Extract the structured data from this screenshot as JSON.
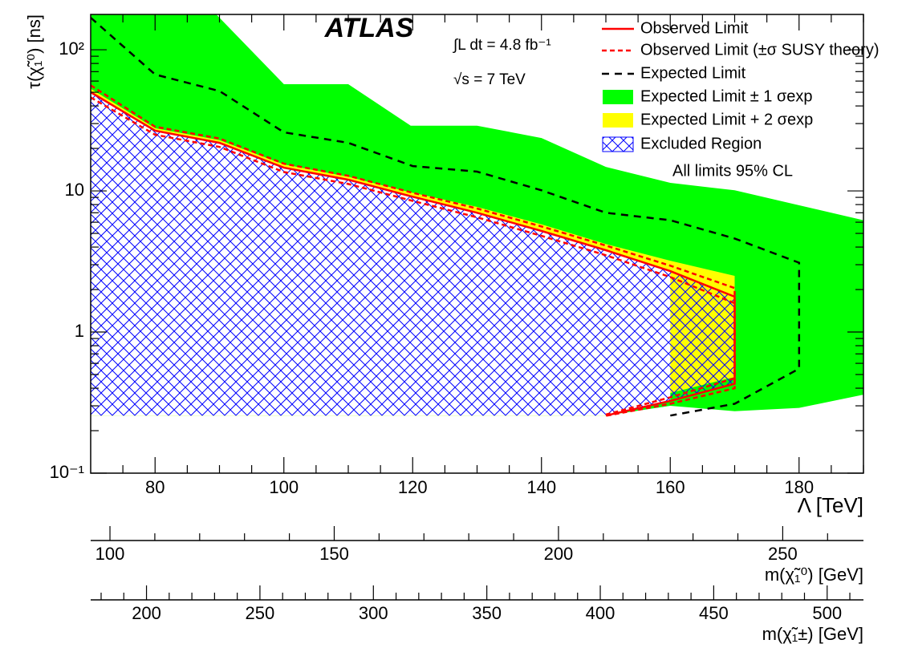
{
  "chart_data": {
    "type": "exclusion",
    "xlabel": "Λ [TeV]",
    "ylabel": "τ(χ̃₁⁰) [ns]",
    "xlim": [
      70,
      190
    ],
    "ylim": [
      0.1,
      178
    ],
    "log_y": true,
    "xticks": [
      80,
      100,
      120,
      140,
      160,
      180
    ],
    "xminorticks": [
      75,
      85,
      90,
      95,
      105,
      110,
      115,
      125,
      130,
      135,
      145,
      150,
      155,
      165,
      170,
      175,
      185,
      190
    ],
    "yticks": [
      {
        "value": 0.1,
        "label": "10⁻¹"
      },
      1,
      10,
      {
        "value": 100,
        "label": "10²"
      }
    ],
    "yminorticks": [
      0.2,
      0.3,
      0.4,
      0.5,
      0.6,
      0.7,
      0.8,
      0.9,
      2,
      3,
      4,
      5,
      6,
      7,
      8,
      9,
      20,
      30,
      40,
      50,
      60,
      70,
      80,
      90
    ],
    "annotations": {
      "experiment": "ATLAS",
      "luminosity": "∫L dt = 4.8 fb⁻¹",
      "energy": "√s = 7 TeV",
      "cl": "All limits 95% CL"
    },
    "series": [
      {
        "name": "Expected Limit ± 1 σexp",
        "kind": "band",
        "color": "#00ff00",
        "x": [
          70,
          89.5,
          100,
          110,
          119.7,
          130,
          140,
          150,
          160,
          170,
          190,
          190,
          180,
          170,
          160,
          150,
          70
        ],
        "values": [
          178,
          178,
          57,
          57,
          29,
          29,
          23.7,
          14.8,
          11.4,
          10.1,
          6.2,
          0.36,
          0.29,
          0.275,
          0.3,
          0.256,
          0.256
        ]
      },
      {
        "name": "Expected Limit + 2 σexp",
        "kind": "band",
        "color": "#ffff00",
        "x": [
          70,
          80,
          90,
          100,
          110,
          120,
          130,
          140,
          150,
          160,
          170,
          170,
          160,
          150,
          70
        ],
        "values": [
          53,
          27.8,
          22.9,
          15.4,
          12.6,
          9.7,
          7.7,
          5.8,
          4.2,
          3.2,
          2.5,
          0.48,
          0.37,
          0.256,
          0.256
        ]
      },
      {
        "kind": "blank",
        "color": "#ffffff",
        "x": [
          70,
          80,
          90,
          100,
          110,
          120,
          130,
          140,
          150,
          160,
          160,
          150,
          70
        ],
        "values": [
          50,
          26.7,
          21.9,
          14.6,
          12,
          9.1,
          7.0,
          5.2,
          3.8,
          2.7,
          0.325,
          0.256,
          0.256
        ]
      },
      {
        "name": "Excluded Region",
        "kind": "hatch",
        "color": "#0000ff",
        "x": [
          70,
          80,
          90,
          100,
          110,
          120,
          130,
          140,
          150,
          160,
          170,
          170,
          160,
          150,
          70
        ],
        "values": [
          50,
          26.7,
          21.9,
          14.6,
          12,
          9.1,
          7.0,
          5.2,
          3.8,
          2.7,
          1.78,
          0.43,
          0.325,
          0.256,
          0.256
        ]
      },
      {
        "name": "Expected Limit",
        "kind": "line",
        "dash": true,
        "color": "#000000",
        "x": [
          70,
          80,
          90,
          100,
          110,
          120,
          130,
          140,
          150,
          160,
          170,
          180,
          180,
          170,
          160
        ],
        "values": [
          169,
          66.8,
          51,
          26,
          21.9,
          15,
          13.7,
          10.1,
          7.0,
          6.2,
          4.6,
          3.1,
          0.55,
          0.31,
          0.256
        ]
      },
      {
        "name": "Observed Limit (±σ SUSY theory)",
        "kind": "line",
        "dash": true,
        "color": "#ff0000",
        "x": [
          70,
          80,
          90,
          100,
          110,
          120,
          130,
          140,
          150,
          160,
          170,
          170,
          160,
          150
        ],
        "values": [
          56,
          28.5,
          23.5,
          15.6,
          12.8,
          9.7,
          7.5,
          5.6,
          4.1,
          2.95,
          2.05,
          0.47,
          0.345,
          0.26
        ],
        "values_lower": [
          46,
          25,
          20.5,
          13.6,
          11.2,
          8.5,
          6.5,
          4.8,
          3.5,
          2.45,
          1.6,
          0.4,
          0.31,
          0.255
        ]
      },
      {
        "name": "Observed Limit",
        "kind": "line",
        "dash": false,
        "color": "#ff0000",
        "x": [
          70,
          80,
          90,
          100,
          110,
          120,
          130,
          140,
          150,
          160,
          170,
          170,
          160,
          150
        ],
        "values": [
          50,
          26.7,
          21.9,
          14.6,
          12,
          9.1,
          7.0,
          5.2,
          3.8,
          2.7,
          1.78,
          0.43,
          0.325,
          0.256
        ]
      }
    ],
    "secondary_axes": [
      {
        "label": "m(χ̃₁⁰) [GeV]",
        "lim": [
          95.7,
          268
        ],
        "ticks": [
          100,
          150,
          200,
          250
        ],
        "minor_ticks": [
          110,
          120,
          130,
          140,
          160,
          170,
          180,
          190,
          210,
          220,
          230,
          240,
          260
        ]
      },
      {
        "label": "m(χ̃₁±) [GeV]",
        "lim": [
          175.4,
          516
        ],
        "ticks": [
          200,
          250,
          300,
          350,
          400,
          450,
          500
        ],
        "minor_ticks": [
          180,
          190,
          210,
          220,
          230,
          240,
          260,
          270,
          280,
          290,
          310,
          320,
          330,
          340,
          360,
          370,
          380,
          390,
          410,
          420,
          430,
          440,
          460,
          470,
          480,
          490,
          510
        ]
      }
    ]
  }
}
